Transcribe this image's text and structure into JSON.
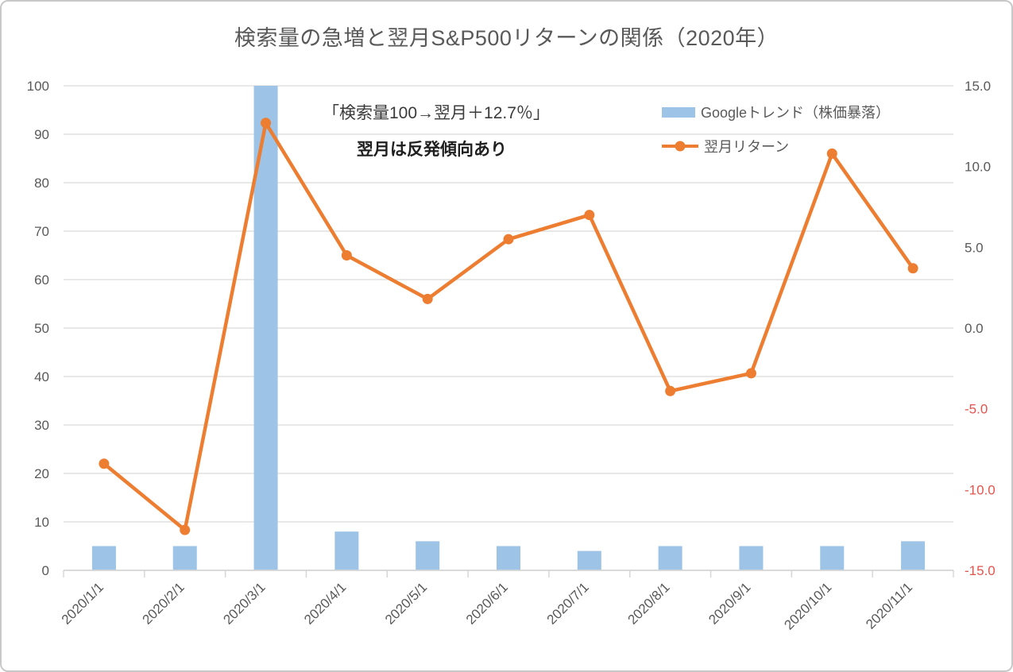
{
  "title": "検索量の急増と翌月S&P500リターンの関係（2020年）",
  "annotations": {
    "callout": "「検索量100→翌月＋12.7％」",
    "note": "翌月は反発傾向あり"
  },
  "legend": [
    {
      "label": "Googleトレンド（株価暴落）",
      "type": "bar",
      "color": "#9dc3e6"
    },
    {
      "label": "翌月リターン",
      "type": "line",
      "color": "#ed7d31"
    }
  ],
  "colors": {
    "bar": "#9dc3e6",
    "line": "#ed7d31",
    "grid": "#d9d9d9",
    "axis": "#d4d4d4",
    "text": "#595959",
    "negative": "#e4544c",
    "border": "#c8c8c8"
  },
  "chart_data": {
    "type": "combo",
    "title": "検索量の急増と翌月S&P500リターンの関係（2020年）",
    "categories": [
      "2020/1/1",
      "2020/2/1",
      "2020/3/1",
      "2020/4/1",
      "2020/5/1",
      "2020/6/1",
      "2020/7/1",
      "2020/8/1",
      "2020/9/1",
      "2020/10/1",
      "2020/11/1"
    ],
    "series": [
      {
        "name": "Googleトレンド（株価暴落）",
        "type": "bar",
        "axis": "left",
        "color": "#9dc3e6",
        "values": [
          5,
          5,
          100,
          8,
          6,
          5,
          4,
          5,
          5,
          5,
          6
        ]
      },
      {
        "name": "翌月リターン",
        "type": "line",
        "axis": "right",
        "color": "#ed7d31",
        "values": [
          -8.4,
          -12.5,
          12.7,
          4.5,
          1.8,
          5.5,
          7.0,
          -3.9,
          -2.8,
          10.8,
          3.7
        ]
      }
    ],
    "left_axis": {
      "min": 0,
      "max": 100,
      "step": 10,
      "tick_labels": [
        "0",
        "10",
        "20",
        "30",
        "40",
        "50",
        "60",
        "70",
        "80",
        "90",
        "100"
      ]
    },
    "right_axis": {
      "min": -15,
      "max": 15,
      "step": 5,
      "tick_labels": [
        "-15.0",
        "-10.0",
        "-5.0",
        "0.0",
        "5.0",
        "10.0",
        "15.0"
      ],
      "negative_label_color": "red"
    },
    "grid": true,
    "legend_position": "top-right",
    "x_label_rotation": -45
  }
}
